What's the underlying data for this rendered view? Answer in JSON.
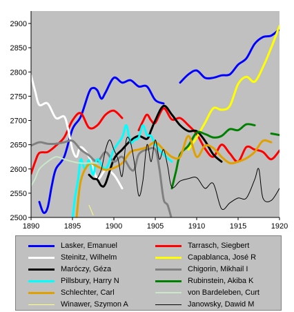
{
  "chart_data": {
    "type": "line",
    "title": "",
    "xlabel": "",
    "ylabel": "",
    "xlim": [
      1890,
      1920
    ],
    "ylim": [
      2500,
      2920
    ],
    "x_ticks": [
      "1890",
      "1895",
      "1900",
      "1905",
      "1910",
      "1915",
      "1920"
    ],
    "y_ticks": [
      "2500",
      "2550",
      "2600",
      "2650",
      "2700",
      "2750",
      "2800",
      "2850",
      "2900"
    ],
    "grid": false,
    "legend_placement": "bottom",
    "plot_background": "#c0c0c0",
    "series": [
      {
        "name": "Lasker, Emanuel",
        "color": "#0000ff",
        "width": 3,
        "x": [
          1891.0,
          1891.5,
          1892.0,
          1892.5,
          1893.0,
          1894.0,
          1895.0,
          1896.0,
          1897.0,
          1897.5,
          1898.0,
          1898.5,
          1899.0,
          1900.0,
          1901.0,
          1902.0,
          1903.0,
          1904.0,
          1905.0,
          1906.0
        ],
        "y": [
          2532,
          2510,
          2520,
          2565,
          2600,
          2625,
          2682,
          2708,
          2758,
          2767,
          2762,
          2745,
          2758,
          2788,
          2778,
          2783,
          2770,
          2770,
          2742,
          2735
        ]
      },
      {
        "name": "Lasker, Emanuel",
        "color": "#0000ff",
        "width": 3,
        "x": [
          1908.0,
          1909.0,
          1910.0,
          1911.0,
          1912.0,
          1913.0,
          1914.0,
          1915.0,
          1916.0,
          1917.0,
          1918.0,
          1919.0,
          1920.0
        ],
        "y": [
          2778,
          2795,
          2803,
          2788,
          2788,
          2793,
          2795,
          2815,
          2828,
          2858,
          2872,
          2875,
          2888
        ]
      },
      {
        "name": "Tarrasch, Siegbert",
        "color": "#ff0000",
        "width": 3,
        "x": [
          1890.0,
          1890.5,
          1891.0,
          1892.0,
          1893.0,
          1894.0,
          1895.0,
          1896.0,
          1897.0,
          1898.0,
          1899.0,
          1900.0,
          1901.0
        ],
        "y": [
          2590,
          2615,
          2633,
          2635,
          2648,
          2665,
          2700,
          2715,
          2685,
          2690,
          2712,
          2720,
          2705
        ]
      },
      {
        "name": "Tarrasch, Siegbert",
        "color": "#ff0000",
        "width": 3,
        "x": [
          1903.0,
          1903.5,
          1904.0,
          1904.5,
          1905.0,
          1906.0,
          1907.0,
          1908.0,
          1909.0,
          1910.0,
          1911.0,
          1912.0,
          1913.0,
          1914.0,
          1915.0,
          1916.0,
          1917.0,
          1918.0,
          1919.0,
          1920.0
        ],
        "y": [
          2680,
          2698,
          2712,
          2700,
          2695,
          2725,
          2702,
          2705,
          2690,
          2672,
          2642,
          2625,
          2650,
          2632,
          2615,
          2645,
          2640,
          2635,
          2620,
          2638
        ]
      },
      {
        "name": "Steinitz, Wilhelm",
        "color": "#ffffff",
        "width": 3,
        "x": [
          1890.0,
          1890.5,
          1891.0,
          1892.0,
          1893.0,
          1894.0,
          1894.5,
          1895.0,
          1895.5,
          1896.0,
          1897.0,
          1898.0,
          1899.0,
          1900.0,
          1901.0
        ],
        "y": [
          2793,
          2760,
          2732,
          2735,
          2705,
          2708,
          2680,
          2640,
          2625,
          2645,
          2625,
          2580,
          2598,
          2588,
          2560
        ]
      },
      {
        "name": "Capablanca, José R",
        "color": "#ffff00",
        "width": 3,
        "x": [
          1909.0,
          1910.0,
          1911.0,
          1912.0,
          1913.0,
          1914.0,
          1915.0,
          1916.0,
          1917.0,
          1918.0,
          1919.0,
          1920.0
        ],
        "y": [
          2640,
          2665,
          2695,
          2725,
          2722,
          2730,
          2775,
          2790,
          2780,
          2810,
          2850,
          2895
        ]
      },
      {
        "name": "Maróczy, Géza",
        "color": "#000000",
        "width": 3,
        "x": [
          1897.0,
          1897.5,
          1898.0,
          1898.5,
          1899.0,
          1900.0,
          1901.0,
          1902.0,
          1903.0,
          1904.0,
          1904.5,
          1905.0,
          1906.0,
          1907.0,
          1908.0,
          1909.0,
          1910.0,
          1911.0,
          1912.0,
          1913.0
        ],
        "y": [
          2588,
          2580,
          2578,
          2565,
          2570,
          2620,
          2640,
          2658,
          2668,
          2662,
          2680,
          2700,
          2730,
          2712,
          2690,
          2678,
          2678,
          2658,
          2630,
          2615
        ]
      },
      {
        "name": "Chigorin, Mikhail I",
        "color": "#808080",
        "width": 3,
        "x": [
          1890.0,
          1891.0,
          1892.0,
          1893.0,
          1894.0,
          1895.0,
          1896.0,
          1897.0,
          1898.0,
          1899.0,
          1900.0,
          1901.0,
          1902.0,
          1902.5,
          1903.0,
          1904.0,
          1905.0,
          1905.5,
          1906.0,
          1906.5,
          1907.0
        ],
        "y": [
          2648,
          2655,
          2652,
          2652,
          2655,
          2658,
          2640,
          2628,
          2615,
          2635,
          2615,
          2625,
          2600,
          2600,
          2630,
          2640,
          2640,
          2600,
          2538,
          2525,
          2495
        ]
      },
      {
        "name": "Pillsbury, Harry N",
        "color": "#00ffff",
        "width": 3,
        "x": [
          1895.0,
          1895.3,
          1895.7,
          1896.0,
          1896.5,
          1897.0,
          1897.5,
          1898.0,
          1899.0,
          1900.0,
          1901.0,
          1901.5,
          1902.0,
          1902.5,
          1903.0,
          1903.5,
          1904.0,
          1904.5,
          1905.0,
          1906.0,
          1907.0
        ],
        "y": [
          2495,
          2540,
          2580,
          2620,
          2600,
          2618,
          2588,
          2620,
          2600,
          2640,
          2665,
          2690,
          2655,
          2660,
          2665,
          2690,
          2670,
          2668,
          2650,
          2630,
          2615
        ]
      },
      {
        "name": "Rubinstein, Akiba K",
        "color": "#008000",
        "width": 3,
        "x": [
          1907.0,
          1907.5,
          1908.0,
          1909.0,
          1910.0,
          1911.0,
          1912.0,
          1913.0,
          1914.0,
          1915.0,
          1916.0,
          1917.0
        ],
        "y": [
          2560,
          2595,
          2630,
          2648,
          2675,
          2672,
          2665,
          2668,
          2682,
          2680,
          2692,
          2690
        ]
      },
      {
        "name": "Rubinstein, Akiba K",
        "color": "#008000",
        "width": 3,
        "x": [
          1919.0,
          1920.0
        ],
        "y": [
          2673,
          2670
        ]
      },
      {
        "name": "Schlechter, Carl",
        "color": "#e0a000",
        "width": 3,
        "x": [
          1895.5,
          1896.0,
          1897.0,
          1898.0,
          1899.0,
          1900.0,
          1901.0,
          1902.0,
          1903.0,
          1904.0,
          1905.0,
          1906.0,
          1907.0,
          1908.0,
          1909.0,
          1910.0,
          1911.0,
          1912.0,
          1913.0,
          1914.0,
          1915.0,
          1916.0,
          1917.0,
          1918.0,
          1919.0
        ],
        "y": [
          2500,
          2575,
          2610,
          2605,
          2598,
          2602,
          2612,
          2635,
          2640,
          2645,
          2655,
          2640,
          2625,
          2625,
          2668,
          2625,
          2648,
          2643,
          2625,
          2612,
          2615,
          2622,
          2635,
          2658,
          2655
        ]
      },
      {
        "name": "von Bardeleben, Curt",
        "color": "#c8e8c8",
        "width": 2,
        "x": [
          1890.0,
          1890.5,
          1891.0,
          1892.0,
          1893.0,
          1894.0,
          1895.0,
          1896.0,
          1897.0,
          1898.0
        ],
        "y": [
          2565,
          2580,
          2600,
          2615,
          2625,
          2620,
          2615,
          2612,
          2612,
          2612
        ]
      },
      {
        "name": "Winawer, Szymon A",
        "color": "#ffff80",
        "width": 1,
        "x": [
          1897.0,
          1897.5
        ],
        "y": [
          2525,
          2505
        ]
      },
      {
        "name": "Janowsky, Dawid M",
        "color": "#000000",
        "width": 1,
        "x": [
          1898.0,
          1898.5,
          1899.0,
          1899.5,
          1900.0,
          1900.5,
          1901.0,
          1901.5,
          1902.0,
          1902.5,
          1903.0,
          1903.5,
          1904.0,
          1904.5,
          1905.0,
          1905.5,
          1906.0,
          1906.5,
          1907.0,
          1908.0,
          1909.0,
          1910.0,
          1911.0,
          1912.0,
          1913.0,
          1914.0,
          1915.0,
          1916.0,
          1917.0,
          1917.5,
          1918.0,
          1919.0,
          1920.0
        ],
        "y": [
          2580,
          2600,
          2640,
          2660,
          2640,
          2620,
          2585,
          2660,
          2655,
          2610,
          2545,
          2575,
          2650,
          2615,
          2660,
          2620,
          2640,
          2605,
          2562,
          2575,
          2580,
          2582,
          2560,
          2570,
          2518,
          2530,
          2540,
          2540,
          2578,
          2600,
          2540,
          2535,
          2560
        ]
      }
    ]
  },
  "legend": [
    {
      "label": "Lasker, Emanuel",
      "color": "#0000ff",
      "width": 3
    },
    {
      "label": "Tarrasch, Siegbert",
      "color": "#ff0000",
      "width": 3
    },
    {
      "label": "Steinitz, Wilhelm",
      "color": "#ffffff",
      "width": 3
    },
    {
      "label": "Capablanca, José R",
      "color": "#ffff00",
      "width": 3
    },
    {
      "label": "Maróczy, Géza",
      "color": "#000000",
      "width": 3
    },
    {
      "label": "Chigorin, Mikhail I",
      "color": "#808080",
      "width": 3
    },
    {
      "label": "Pillsbury, Harry N",
      "color": "#00ffff",
      "width": 3
    },
    {
      "label": "Rubinstein, Akiba K",
      "color": "#008000",
      "width": 3
    },
    {
      "label": "Schlechter, Carl",
      "color": "#e0a000",
      "width": 3
    },
    {
      "label": "von Bardeleben, Curt",
      "color": "#c8e8c8",
      "width": 2
    },
    {
      "label": "Winawer, Szymon A",
      "color": "#ffff80",
      "width": 1
    },
    {
      "label": "Janowsky, Dawid M",
      "color": "#000000",
      "width": 1
    }
  ]
}
